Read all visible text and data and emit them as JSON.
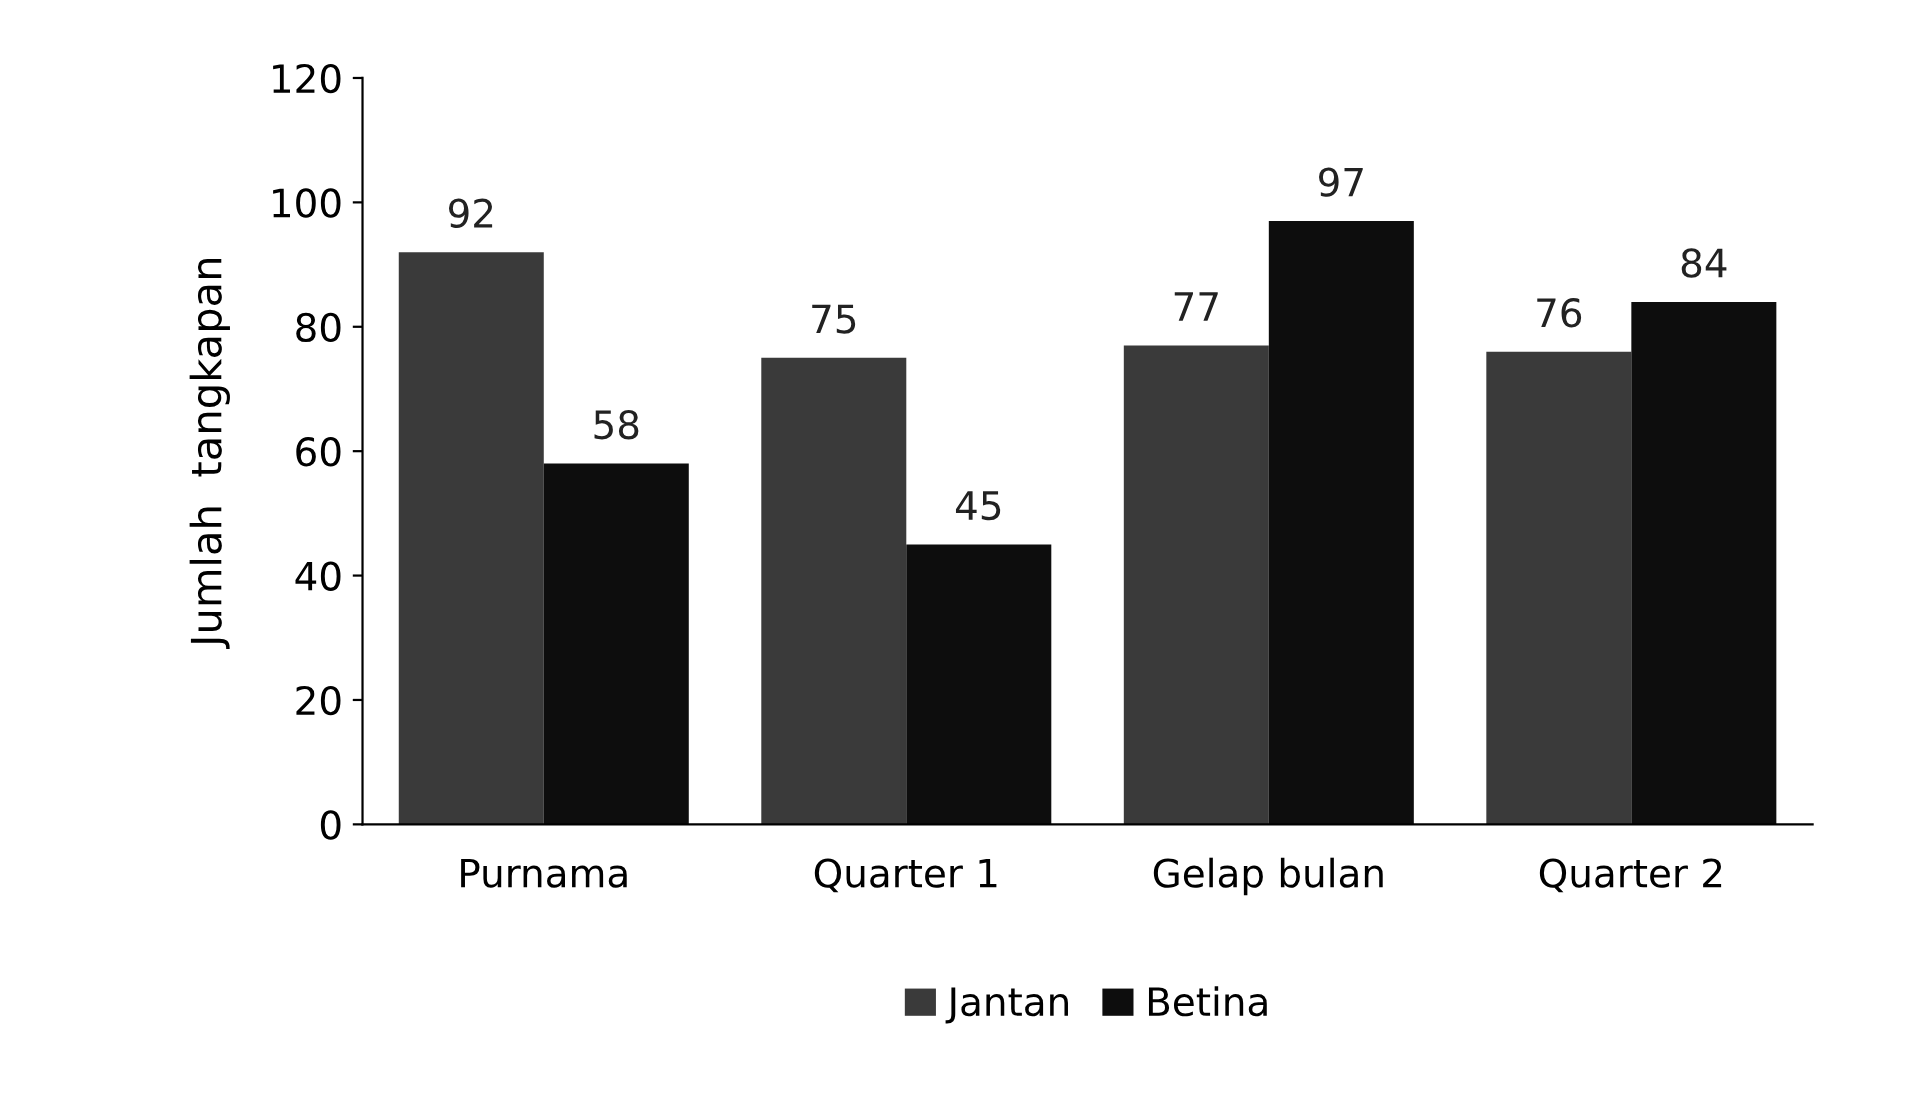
{
  "chart_data": {
    "type": "bar",
    "ylabel": "Jumlah  tangkapan",
    "categories": [
      "Purnama",
      "Quarter 1",
      "Gelap bulan",
      "Quarter 2"
    ],
    "series": [
      {
        "name": "Jantan",
        "color": "#3a3a3a",
        "values": [
          92,
          75,
          77,
          76
        ]
      },
      {
        "name": "Betina",
        "color": "#0d0d0d",
        "values": [
          58,
          45,
          97,
          84
        ]
      }
    ],
    "ylim": [
      0,
      120
    ],
    "yticks": [
      0,
      20,
      40,
      60,
      80,
      100,
      120
    ],
    "data_labels": true,
    "grid": false,
    "legend": "bottom"
  }
}
